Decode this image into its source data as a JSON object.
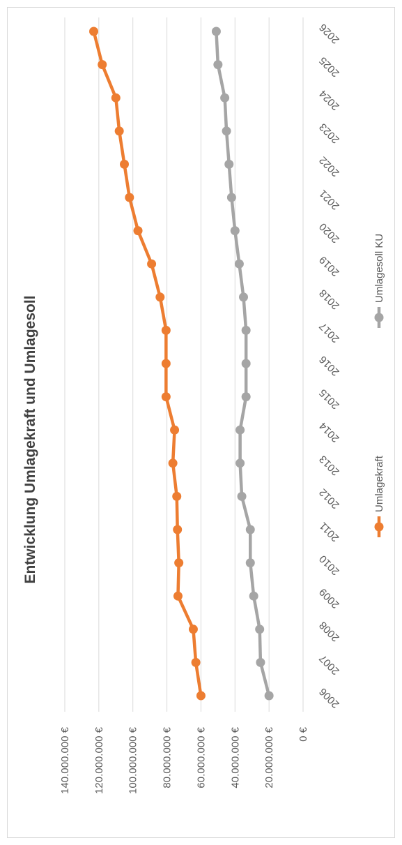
{
  "chart_data": {
    "type": "line",
    "title": "Entwicklung Umlagekraft und Umlagesoll",
    "categories": [
      "2006",
      "2007",
      "2008",
      "2009",
      "2010",
      "2011",
      "2012",
      "2013",
      "2014",
      "2015",
      "2016",
      "2017",
      "2018",
      "2019",
      "2020",
      "2021",
      "2022",
      "2023",
      "2024",
      "2025",
      "2026"
    ],
    "series": [
      {
        "name": "Umlagekraft",
        "color": "#ED7D31",
        "values": [
          60000000,
          63000000,
          64500000,
          73500000,
          73000000,
          73800000,
          74200000,
          76500000,
          75500000,
          80500000,
          80500000,
          80500000,
          84000000,
          89000000,
          97000000,
          102000000,
          105000000,
          108000000,
          110000000,
          118000000,
          123000000
        ]
      },
      {
        "name": "Umlagesoll KU",
        "color": "#A5A5A5",
        "values": [
          20000000,
          25000000,
          25500000,
          29000000,
          31000000,
          31000000,
          36000000,
          37000000,
          37000000,
          33500000,
          33500000,
          33500000,
          35000000,
          37500000,
          40000000,
          42000000,
          43500000,
          45000000,
          46000000,
          50000000,
          51000000
        ]
      }
    ],
    "y_ticks": [
      "0 €",
      "20.000.000 €",
      "40.000.000 €",
      "60.000.000 €",
      "80.000.000 €",
      "100.000.000 €",
      "120.000.000 €",
      "140.000.000 €"
    ],
    "ylim": [
      0,
      140000000
    ],
    "grid": true,
    "legend_position": "bottom",
    "orientation": "rotated-90-clockwise"
  }
}
